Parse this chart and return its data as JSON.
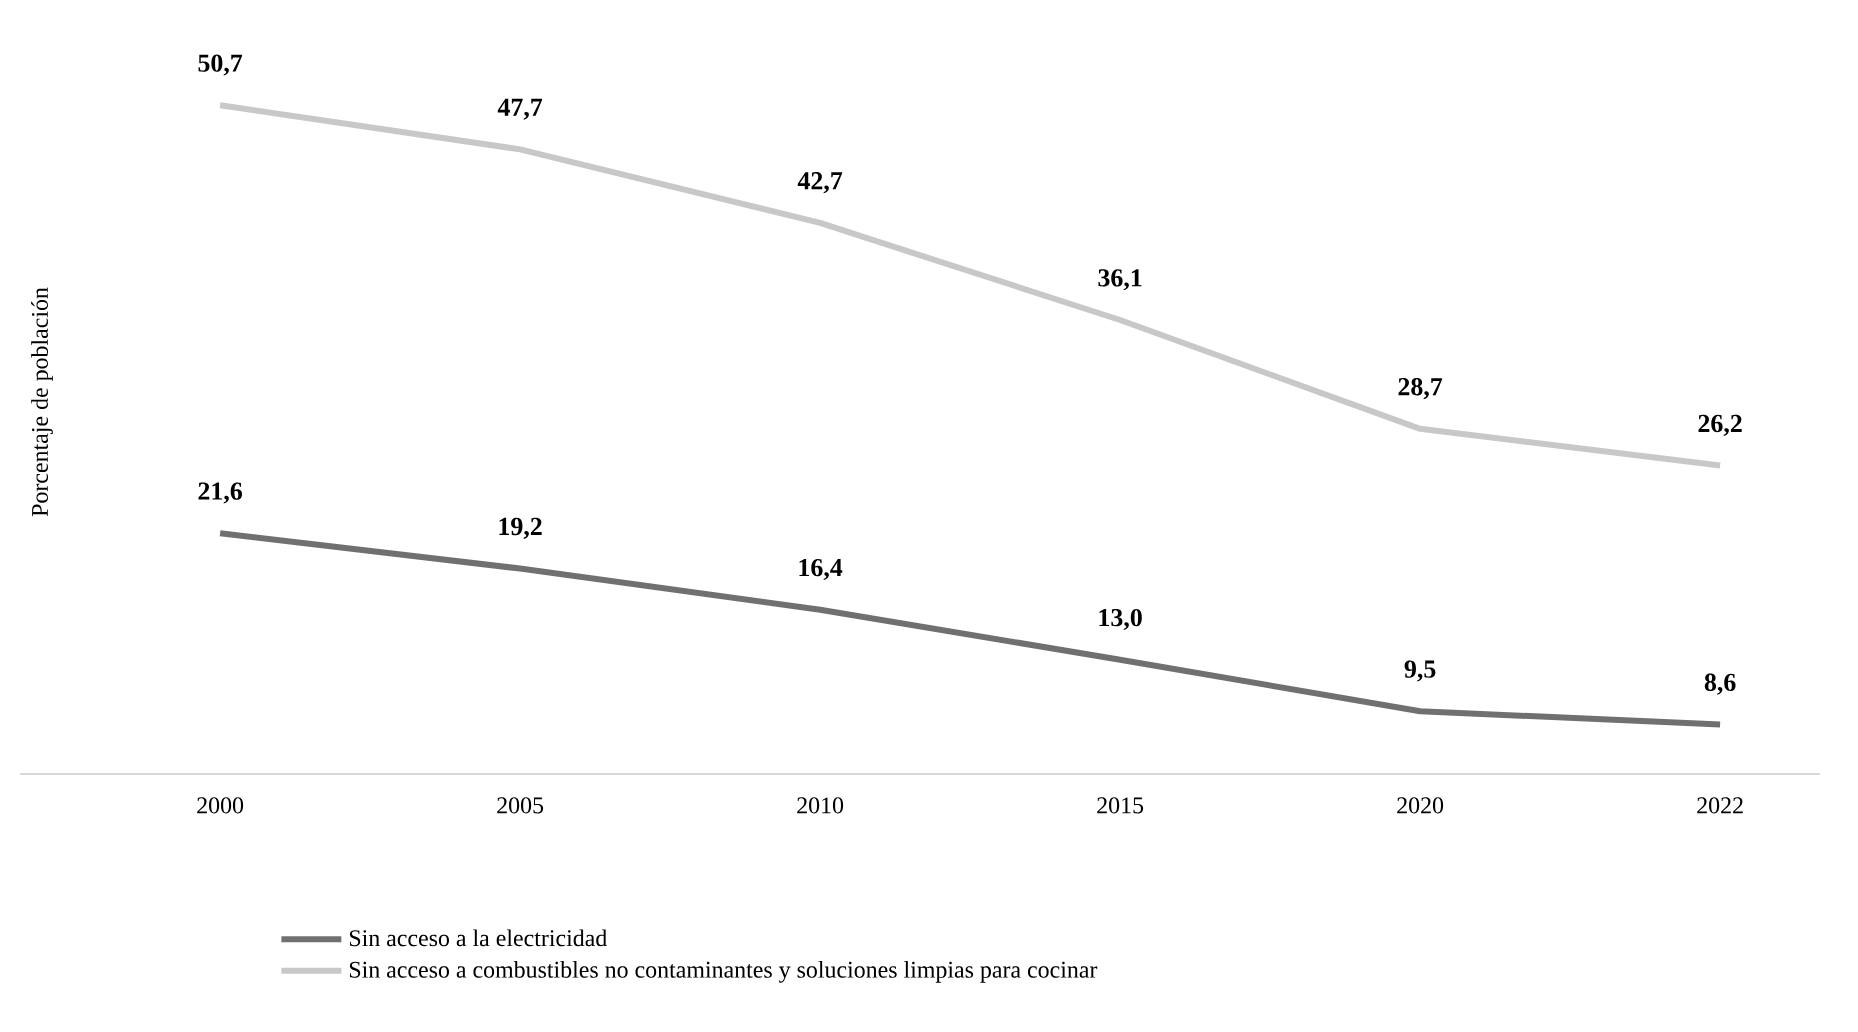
{
  "chart_data": {
    "type": "line",
    "ylabel": "Porcentaje de población",
    "categories": [
      "2000",
      "2005",
      "2010",
      "2015",
      "2020",
      "2022"
    ],
    "series": [
      {
        "name": "Sin acceso a la electricidad",
        "color": "#707070",
        "values": [
          21.6,
          19.2,
          16.4,
          13.0,
          9.5,
          8.6
        ],
        "value_labels": [
          "21,6",
          "19,2",
          "16,4",
          "13,0",
          "9,5",
          "8,6"
        ]
      },
      {
        "name": "Sin acceso a combustibles no contaminantes y soluciones limpias para cocinar",
        "color": "#c8c8c8",
        "values": [
          50.7,
          47.7,
          42.7,
          36.1,
          28.7,
          26.2
        ],
        "value_labels": [
          "50,7",
          "47,7",
          "42,7",
          "36,1",
          "28,7",
          "26,2"
        ]
      }
    ],
    "legend": "bottom",
    "marker": "none",
    "line_style": "solid"
  }
}
